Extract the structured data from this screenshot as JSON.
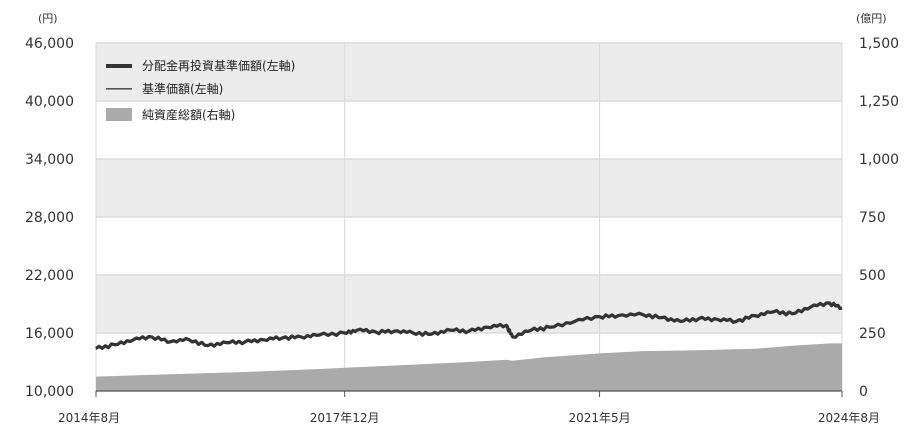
{
  "chart_data": {
    "type": "line",
    "left_axis_unit": "(円)",
    "right_axis_unit": "(億円)",
    "left_ylim": [
      10000,
      46000
    ],
    "right_ylim": [
      0,
      1500
    ],
    "left_ticks": [
      "46,000",
      "40,000",
      "34,000",
      "28,000",
      "22,000",
      "16,000",
      "10,000"
    ],
    "right_ticks": [
      "1,500",
      "1,250",
      "1,000",
      "750",
      "500",
      "250",
      "0"
    ],
    "x_tick_labels": [
      "2014年8月",
      "2017年12月",
      "2021年5月",
      "2024年8月"
    ],
    "x_tick_dates": [
      "2014-08",
      "2017-12",
      "2021-05",
      "2024-08"
    ],
    "legend_placement": "top-left",
    "grid": true,
    "series": [
      {
        "name": "分配金再投資基準価額(左軸)",
        "kind": "line-thick",
        "color": "#333333",
        "axis": "left",
        "points": [
          [
            "2014-08",
            14400
          ],
          [
            "2014-11",
            14800
          ],
          [
            "2015-02",
            15300
          ],
          [
            "2015-05",
            15600
          ],
          [
            "2015-08",
            15100
          ],
          [
            "2015-11",
            15300
          ],
          [
            "2016-02",
            14700
          ],
          [
            "2016-05",
            15000
          ],
          [
            "2016-08",
            15100
          ],
          [
            "2016-11",
            15300
          ],
          [
            "2017-02",
            15500
          ],
          [
            "2017-05",
            15600
          ],
          [
            "2017-08",
            15800
          ],
          [
            "2017-12",
            16000
          ],
          [
            "2018-02",
            16300
          ],
          [
            "2018-05",
            16100
          ],
          [
            "2018-08",
            16200
          ],
          [
            "2018-11",
            16000
          ],
          [
            "2019-02",
            15900
          ],
          [
            "2019-05",
            16300
          ],
          [
            "2019-08",
            16200
          ],
          [
            "2019-11",
            16600
          ],
          [
            "2020-02",
            16800
          ],
          [
            "2020-03",
            15600
          ],
          [
            "2020-06",
            16300
          ],
          [
            "2020-09",
            16600
          ],
          [
            "2021-01",
            17200
          ],
          [
            "2021-05",
            17700
          ],
          [
            "2021-08",
            17800
          ],
          [
            "2021-12",
            17900
          ],
          [
            "2022-03",
            17600
          ],
          [
            "2022-06",
            17200
          ],
          [
            "2022-09",
            17500
          ],
          [
            "2022-12",
            17400
          ],
          [
            "2023-03",
            17200
          ],
          [
            "2023-06",
            17800
          ],
          [
            "2023-09",
            18200
          ],
          [
            "2023-12",
            18000
          ],
          [
            "2024-03",
            18700
          ],
          [
            "2024-06",
            19100
          ],
          [
            "2024-08",
            18600
          ]
        ]
      },
      {
        "name": "基準価額(左軸)",
        "kind": "line-thin",
        "color": "#555555",
        "axis": "left",
        "points": [
          [
            "2014-08",
            14300
          ],
          [
            "2014-11",
            14700
          ],
          [
            "2015-02",
            15200
          ],
          [
            "2015-05",
            15500
          ],
          [
            "2015-08",
            15000
          ],
          [
            "2015-11",
            15200
          ],
          [
            "2016-02",
            14600
          ],
          [
            "2016-05",
            14900
          ],
          [
            "2016-08",
            15000
          ],
          [
            "2016-11",
            15200
          ],
          [
            "2017-02",
            15400
          ],
          [
            "2017-05",
            15500
          ],
          [
            "2017-08",
            15700
          ],
          [
            "2017-12",
            15900
          ],
          [
            "2018-02",
            16200
          ],
          [
            "2018-05",
            16000
          ],
          [
            "2018-08",
            16100
          ],
          [
            "2018-11",
            15900
          ],
          [
            "2019-02",
            15800
          ],
          [
            "2019-05",
            16200
          ],
          [
            "2019-08",
            16100
          ],
          [
            "2019-11",
            16500
          ],
          [
            "2020-02",
            16700
          ],
          [
            "2020-03",
            15500
          ],
          [
            "2020-06",
            16200
          ],
          [
            "2020-09",
            16500
          ],
          [
            "2021-01",
            17100
          ],
          [
            "2021-05",
            17600
          ],
          [
            "2021-08",
            17700
          ],
          [
            "2021-12",
            17800
          ],
          [
            "2022-03",
            17500
          ],
          [
            "2022-06",
            17100
          ],
          [
            "2022-09",
            17400
          ],
          [
            "2022-12",
            17300
          ],
          [
            "2023-03",
            17100
          ],
          [
            "2023-06",
            17700
          ],
          [
            "2023-09",
            18100
          ],
          [
            "2023-12",
            17900
          ],
          [
            "2024-03",
            18600
          ],
          [
            "2024-06",
            19000
          ],
          [
            "2024-08",
            18500
          ]
        ]
      },
      {
        "name": "純資産総額(右軸)",
        "kind": "area",
        "color": "#aaaaaa",
        "axis": "right",
        "points": [
          [
            "2014-08",
            62
          ],
          [
            "2015-08",
            72
          ],
          [
            "2016-08",
            82
          ],
          [
            "2017-08",
            95
          ],
          [
            "2017-12",
            100
          ],
          [
            "2018-08",
            110
          ],
          [
            "2019-08",
            125
          ],
          [
            "2020-02",
            135
          ],
          [
            "2020-03",
            130
          ],
          [
            "2020-08",
            145
          ],
          [
            "2021-05",
            162
          ],
          [
            "2021-12",
            172
          ],
          [
            "2022-08",
            175
          ],
          [
            "2023-06",
            182
          ],
          [
            "2023-12",
            195
          ],
          [
            "2024-06",
            205
          ],
          [
            "2024-08",
            205
          ]
        ]
      }
    ]
  }
}
